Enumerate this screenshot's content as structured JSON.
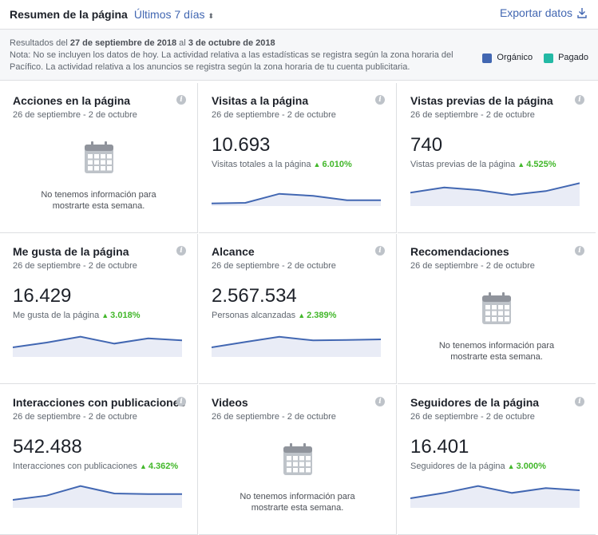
{
  "header": {
    "title": "Resumen de la página",
    "range_label": "Últimos 7 días",
    "export_label": "Exportar datos"
  },
  "notice": {
    "prefix": "Resultados del ",
    "start": "27 de septiembre de 2018",
    "middle": " al ",
    "end": "3 de octubre de 2018",
    "note": "Nota: No se incluyen los datos de hoy. La actividad relativa a las estadísticas se registra según la zona horaria del Pacífico. La actividad relativa a los anuncios se registra según la zona horaria de tu cuenta publicitaria."
  },
  "legend": [
    {
      "label": "Orgánico",
      "color": "#4267b2"
    },
    {
      "label": "Pagado",
      "color": "#23b9a5"
    }
  ],
  "empty_message": "No tenemos información para mostrarte esta semana.",
  "cards": [
    {
      "id": "acciones",
      "title": "Acciones en la página",
      "dates": "26 de septiembre - 2 de octubre",
      "empty": true
    },
    {
      "id": "visitas",
      "title": "Visitas a la página",
      "dates": "26 de septiembre - 2 de octubre",
      "empty": false,
      "value": "10.693",
      "sublabel": "Visitas totales a la página",
      "delta": "6.010%",
      "trend": [
        2,
        3,
        20,
        16,
        8,
        8
      ]
    },
    {
      "id": "vistas",
      "title": "Vistas previas de la página",
      "dates": "26 de septiembre - 2 de octubre",
      "empty": false,
      "value": "740",
      "sublabel": "Vistas previas de la página",
      "delta": "4.525%",
      "trend": [
        22,
        32,
        27,
        18,
        25,
        40
      ]
    },
    {
      "id": "megusta",
      "title": "Me gusta de la página",
      "dates": "26 de septiembre - 2 de octubre",
      "empty": false,
      "value": "16.429",
      "sublabel": "Me gusta de la página",
      "delta": "3.018%",
      "trend": [
        15,
        24,
        35,
        22,
        32,
        28
      ]
    },
    {
      "id": "alcance",
      "title": "Alcance",
      "dates": "26 de septiembre - 2 de octubre",
      "empty": false,
      "value": "2.567.534",
      "sublabel": "Personas alcanzadas",
      "delta": "2.389%",
      "trend": [
        15,
        25,
        35,
        28,
        29,
        30
      ]
    },
    {
      "id": "recomendaciones",
      "title": "Recomendaciones",
      "dates": "26 de septiembre - 2 de octubre",
      "empty": true
    },
    {
      "id": "interacciones",
      "title": "Interacciones con publicaciones",
      "dates": "26 de septiembre - 2 de octubre",
      "empty": false,
      "value": "542.488",
      "sublabel": "Interacciones con publicaciones",
      "delta": "4.362%",
      "trend": [
        12,
        20,
        38,
        24,
        23,
        23
      ]
    },
    {
      "id": "videos",
      "title": "Videos",
      "dates": "26 de septiembre - 2 de octubre",
      "empty": true
    },
    {
      "id": "seguidores",
      "title": "Seguidores de la página",
      "dates": "26 de septiembre - 2 de octubre",
      "empty": false,
      "value": "16.401",
      "sublabel": "Seguidores de la página",
      "delta": "3.000%",
      "trend": [
        15,
        25,
        38,
        25,
        34,
        30
      ]
    }
  ]
}
